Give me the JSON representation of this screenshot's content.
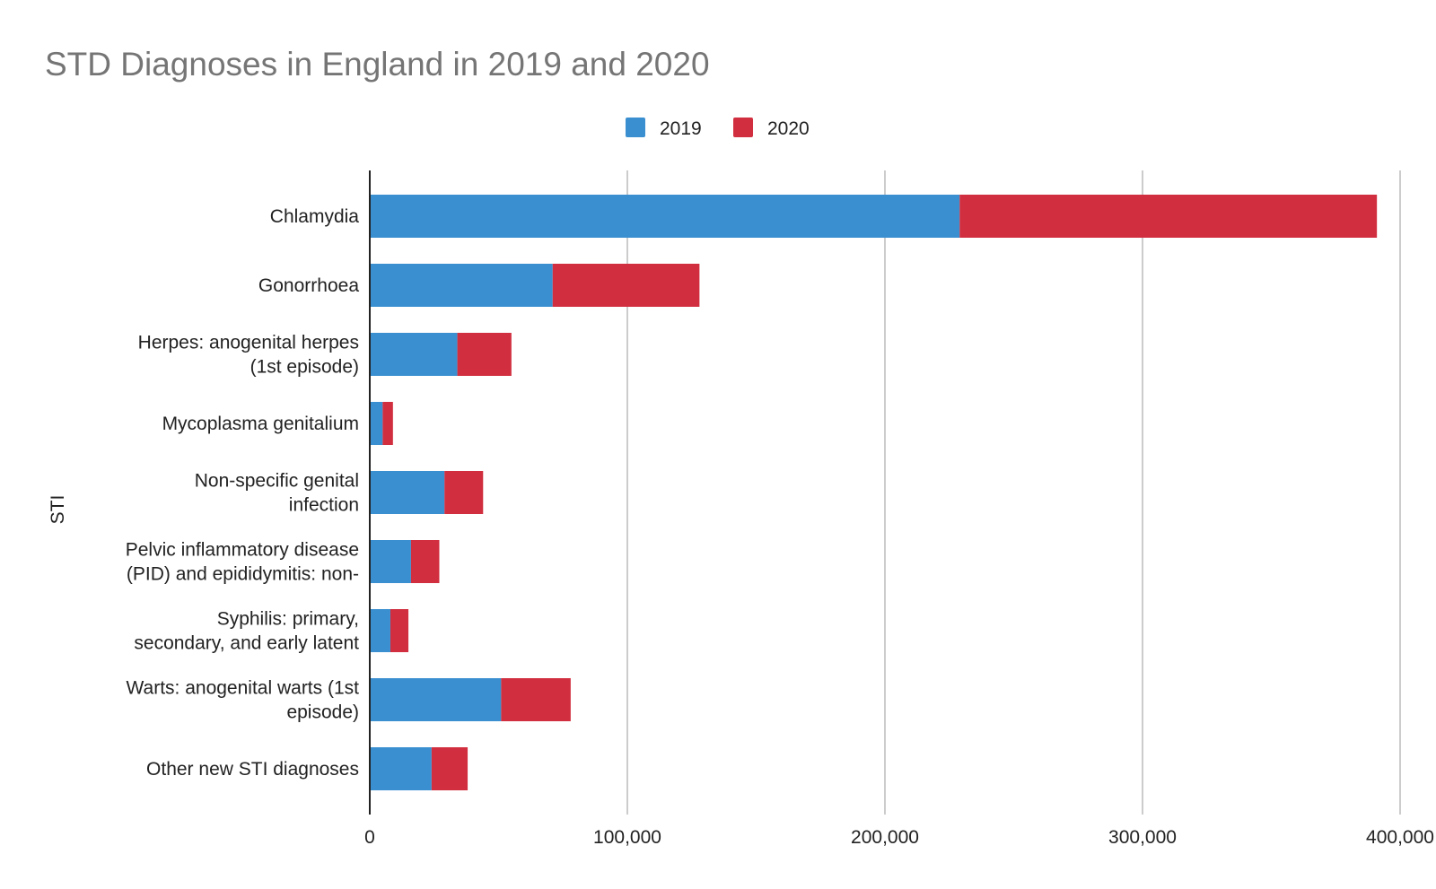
{
  "chart_data": {
    "type": "bar",
    "orientation": "horizontal",
    "stacked": true,
    "title": "STD Diagnoses in England in 2019 and 2020",
    "ylabel": "STI",
    "xlabel": "",
    "xlim": [
      0,
      400000
    ],
    "x_ticks": [
      0,
      100000,
      200000,
      300000,
      400000
    ],
    "x_tick_labels": [
      "0",
      "100,000",
      "200,000",
      "300,000",
      "400,000"
    ],
    "grid": true,
    "legend_position": "top-center",
    "categories": [
      [
        "Chlamydia"
      ],
      [
        "Gonorrhoea"
      ],
      [
        "Herpes: anogenital herpes",
        "(1st episode)"
      ],
      [
        "Mycoplasma genitalium"
      ],
      [
        "Non-specific genital",
        "infection"
      ],
      [
        "Pelvic inflammatory disease",
        "(PID) and epididymitis: non-"
      ],
      [
        "Syphilis: primary,",
        "secondary, and early latent"
      ],
      [
        "Warts: anogenital warts (1st",
        "episode)"
      ],
      [
        "Other new STI diagnoses"
      ]
    ],
    "series": [
      {
        "name": "2019",
        "color": "#3a8fd0",
        "values": [
          229000,
          71000,
          34000,
          5000,
          29000,
          16000,
          8000,
          51000,
          24000
        ]
      },
      {
        "name": "2020",
        "color": "#d12f3f",
        "values": [
          162000,
          57000,
          21000,
          4000,
          15000,
          11000,
          7000,
          27000,
          14000
        ]
      }
    ]
  }
}
